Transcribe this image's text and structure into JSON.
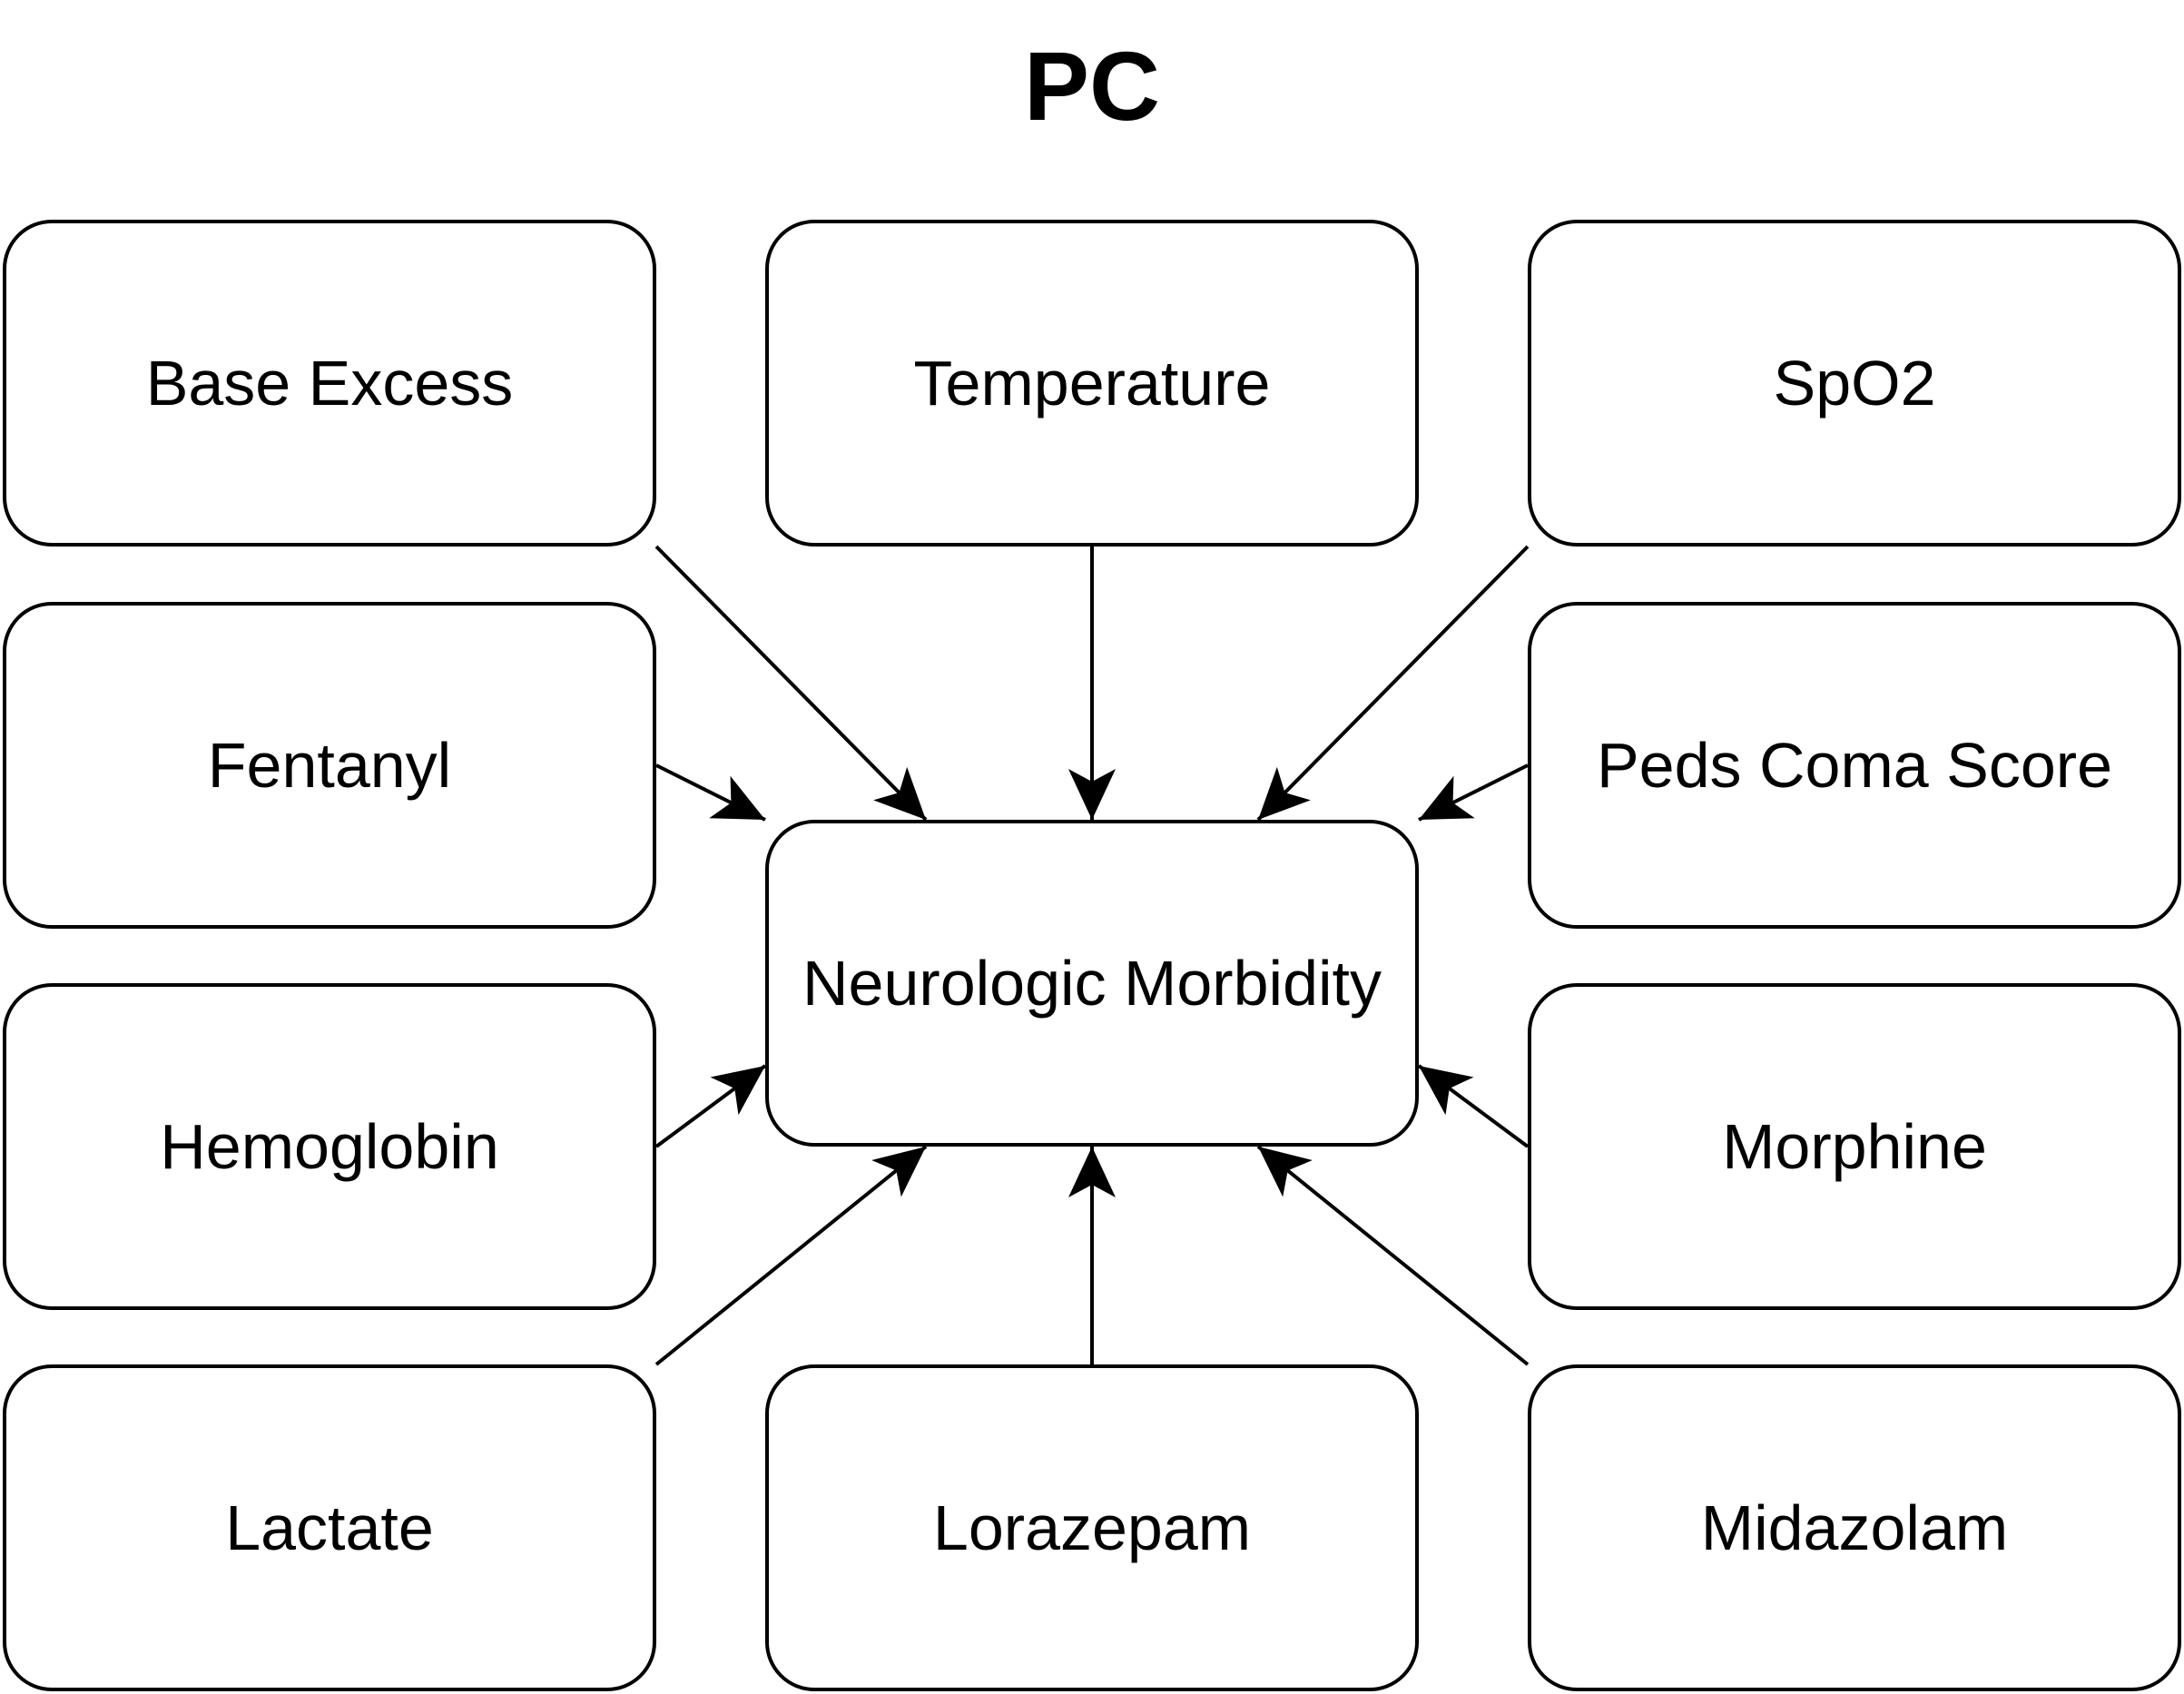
{
  "title": "PC",
  "target": "Neurologic Morbidity",
  "factors": {
    "base_excess": "Base Excess",
    "temperature": "Temperature",
    "spo2": "SpO2",
    "fentanyl": "Fentanyl",
    "peds_coma_score": "Peds Coma Score",
    "hemoglobin": "Hemoglobin",
    "morphine": "Morphine",
    "lactate": "Lactate",
    "lorazepam": "Lorazepam",
    "midazolam": "Midazolam"
  },
  "edges": [
    {
      "from": "Base Excess",
      "to": "Neurologic Morbidity"
    },
    {
      "from": "Temperature",
      "to": "Neurologic Morbidity"
    },
    {
      "from": "SpO2",
      "to": "Neurologic Morbidity"
    },
    {
      "from": "Fentanyl",
      "to": "Neurologic Morbidity"
    },
    {
      "from": "Peds Coma Score",
      "to": "Neurologic Morbidity"
    },
    {
      "from": "Hemoglobin",
      "to": "Neurologic Morbidity"
    },
    {
      "from": "Morphine",
      "to": "Neurologic Morbidity"
    },
    {
      "from": "Lactate",
      "to": "Neurologic Morbidity"
    },
    {
      "from": "Lorazepam",
      "to": "Neurologic Morbidity"
    },
    {
      "from": "Midazolam",
      "to": "Neurologic Morbidity"
    }
  ]
}
